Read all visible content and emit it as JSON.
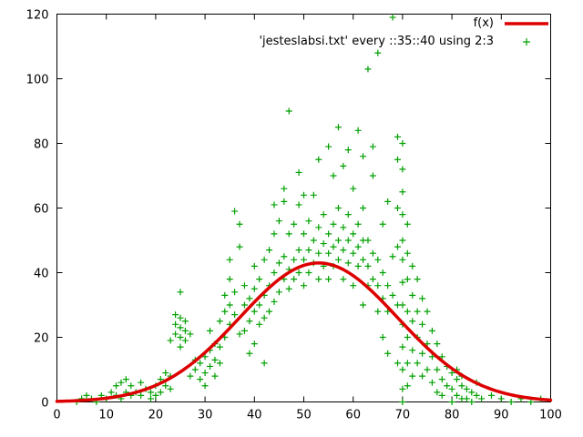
{
  "chart_data": {
    "type": "scatter",
    "title": "",
    "xlabel": "",
    "ylabel": "",
    "x_range": [
      0,
      100
    ],
    "y_range": [
      0,
      120
    ],
    "x_ticks": [
      0,
      10,
      20,
      30,
      40,
      50,
      60,
      70,
      80,
      90,
      100
    ],
    "y_ticks": [
      0,
      20,
      40,
      60,
      80,
      100,
      120
    ],
    "grid": false,
    "legend_position": "top-right-inside",
    "legend": [
      {
        "label": "f(x)",
        "type": "line",
        "color": "#dd0000"
      },
      {
        "label": "'jesteslabsi.txt' every ::35::40 using 2:3",
        "type": "points",
        "color": "#00a000"
      }
    ],
    "curve": {
      "name": "f(x)",
      "shape": "gaussian",
      "amplitude": 43,
      "mean": 53,
      "sigma": 16,
      "color": "#dd0000",
      "line_width": 3.5
    },
    "points_color": "#00a000",
    "points_marker": "plus",
    "points": [
      [
        4,
        0
      ],
      [
        5,
        1
      ],
      [
        6,
        2
      ],
      [
        7,
        1
      ],
      [
        8,
        0
      ],
      [
        9,
        2
      ],
      [
        10,
        1
      ],
      [
        11,
        3
      ],
      [
        12,
        2
      ],
      [
        12,
        5
      ],
      [
        13,
        6
      ],
      [
        13,
        1
      ],
      [
        14,
        7
      ],
      [
        14,
        3
      ],
      [
        15,
        2
      ],
      [
        15,
        5
      ],
      [
        16,
        3
      ],
      [
        17,
        2
      ],
      [
        17,
        6
      ],
      [
        18,
        4
      ],
      [
        19,
        3
      ],
      [
        19,
        1
      ],
      [
        20,
        5
      ],
      [
        20,
        2
      ],
      [
        21,
        7
      ],
      [
        21,
        3
      ],
      [
        22,
        5
      ],
      [
        22,
        9
      ],
      [
        23,
        4
      ],
      [
        23,
        8
      ],
      [
        23,
        19
      ],
      [
        24,
        21
      ],
      [
        24,
        24
      ],
      [
        24,
        27
      ],
      [
        25,
        20
      ],
      [
        25,
        23
      ],
      [
        25,
        26
      ],
      [
        25,
        17
      ],
      [
        25,
        34
      ],
      [
        26,
        22
      ],
      [
        26,
        25
      ],
      [
        26,
        19
      ],
      [
        27,
        21
      ],
      [
        27,
        8
      ],
      [
        28,
        10
      ],
      [
        28,
        13
      ],
      [
        29,
        7
      ],
      [
        29,
        12
      ],
      [
        30,
        9
      ],
      [
        30,
        14
      ],
      [
        30,
        5
      ],
      [
        31,
        11
      ],
      [
        31,
        16
      ],
      [
        31,
        22
      ],
      [
        32,
        8
      ],
      [
        32,
        13
      ],
      [
        32,
        18
      ],
      [
        33,
        12
      ],
      [
        33,
        17
      ],
      [
        33,
        25
      ],
      [
        34,
        20
      ],
      [
        34,
        28
      ],
      [
        34,
        33
      ],
      [
        35,
        24
      ],
      [
        35,
        30
      ],
      [
        35,
        38
      ],
      [
        35,
        44
      ],
      [
        36,
        27
      ],
      [
        36,
        34
      ],
      [
        36,
        59
      ],
      [
        37,
        48
      ],
      [
        37,
        55
      ],
      [
        37,
        21
      ],
      [
        38,
        22
      ],
      [
        38,
        30
      ],
      [
        38,
        36
      ],
      [
        39,
        25
      ],
      [
        39,
        32
      ],
      [
        39,
        15
      ],
      [
        40,
        28
      ],
      [
        40,
        35
      ],
      [
        40,
        42
      ],
      [
        40,
        18
      ],
      [
        41,
        30
      ],
      [
        41,
        38
      ],
      [
        41,
        24
      ],
      [
        42,
        33
      ],
      [
        42,
        44
      ],
      [
        42,
        26
      ],
      [
        42,
        12
      ],
      [
        43,
        36
      ],
      [
        43,
        47
      ],
      [
        43,
        28
      ],
      [
        44,
        40
      ],
      [
        44,
        52
      ],
      [
        44,
        31
      ],
      [
        44,
        61
      ],
      [
        45,
        43
      ],
      [
        45,
        56
      ],
      [
        45,
        34
      ],
      [
        46,
        62
      ],
      [
        46,
        38
      ],
      [
        46,
        45
      ],
      [
        46,
        66
      ],
      [
        47,
        41
      ],
      [
        47,
        35
      ],
      [
        47,
        52
      ],
      [
        47,
        90
      ],
      [
        48,
        44
      ],
      [
        48,
        38
      ],
      [
        48,
        55
      ],
      [
        49,
        47
      ],
      [
        49,
        40
      ],
      [
        49,
        61
      ],
      [
        49,
        71
      ],
      [
        50,
        44
      ],
      [
        50,
        52
      ],
      [
        50,
        36
      ],
      [
        50,
        64
      ],
      [
        51,
        47
      ],
      [
        51,
        56
      ],
      [
        51,
        40
      ],
      [
        52,
        50
      ],
      [
        52,
        43
      ],
      [
        52,
        64
      ],
      [
        53,
        46
      ],
      [
        53,
        54
      ],
      [
        53,
        38
      ],
      [
        53,
        75
      ],
      [
        54,
        49
      ],
      [
        54,
        58
      ],
      [
        54,
        42
      ],
      [
        55,
        46
      ],
      [
        55,
        52
      ],
      [
        55,
        38
      ],
      [
        55,
        79
      ],
      [
        56,
        48
      ],
      [
        56,
        55
      ],
      [
        56,
        42
      ],
      [
        56,
        70
      ],
      [
        57,
        50
      ],
      [
        57,
        44
      ],
      [
        57,
        60
      ],
      [
        57,
        85
      ],
      [
        58,
        47
      ],
      [
        58,
        54
      ],
      [
        58,
        38
      ],
      [
        58,
        73
      ],
      [
        59,
        50
      ],
      [
        59,
        43
      ],
      [
        59,
        58
      ],
      [
        59,
        78
      ],
      [
        60,
        46
      ],
      [
        60,
        52
      ],
      [
        60,
        36
      ],
      [
        60,
        66
      ],
      [
        61,
        48
      ],
      [
        61,
        42
      ],
      [
        61,
        55
      ],
      [
        61,
        84
      ],
      [
        62,
        44
      ],
      [
        62,
        50
      ],
      [
        62,
        30
      ],
      [
        62,
        60
      ],
      [
        62,
        76
      ],
      [
        63,
        42
      ],
      [
        63,
        36
      ],
      [
        63,
        50
      ],
      [
        63,
        103
      ],
      [
        64,
        46
      ],
      [
        64,
        38
      ],
      [
        64,
        70
      ],
      [
        64,
        79
      ],
      [
        65,
        44
      ],
      [
        65,
        36
      ],
      [
        65,
        28
      ],
      [
        65,
        108
      ],
      [
        66,
        40
      ],
      [
        66,
        32
      ],
      [
        66,
        55
      ],
      [
        66,
        20
      ],
      [
        67,
        36
      ],
      [
        67,
        28
      ],
      [
        67,
        62
      ],
      [
        67,
        15
      ],
      [
        68,
        119
      ],
      [
        68,
        45
      ],
      [
        68,
        33
      ],
      [
        69,
        82
      ],
      [
        69,
        75
      ],
      [
        69,
        60
      ],
      [
        69,
        48
      ],
      [
        69,
        30
      ],
      [
        69,
        12
      ],
      [
        70,
        80
      ],
      [
        70,
        72
      ],
      [
        70,
        65
      ],
      [
        70,
        58
      ],
      [
        70,
        50
      ],
      [
        70,
        44
      ],
      [
        70,
        37
      ],
      [
        70,
        30
      ],
      [
        70,
        24
      ],
      [
        70,
        17
      ],
      [
        70,
        10
      ],
      [
        70,
        4
      ],
      [
        70,
        0
      ],
      [
        71,
        55
      ],
      [
        71,
        46
      ],
      [
        71,
        38
      ],
      [
        71,
        28
      ],
      [
        71,
        20
      ],
      [
        71,
        12
      ],
      [
        71,
        5
      ],
      [
        72,
        42
      ],
      [
        72,
        33
      ],
      [
        72,
        25
      ],
      [
        72,
        16
      ],
      [
        72,
        8
      ],
      [
        73,
        38
      ],
      [
        73,
        28
      ],
      [
        73,
        20
      ],
      [
        73,
        12
      ],
      [
        74,
        32
      ],
      [
        74,
        24
      ],
      [
        74,
        15
      ],
      [
        74,
        8
      ],
      [
        75,
        28
      ],
      [
        75,
        18
      ],
      [
        75,
        10
      ],
      [
        76,
        22
      ],
      [
        76,
        14
      ],
      [
        76,
        6
      ],
      [
        77,
        18
      ],
      [
        77,
        10
      ],
      [
        77,
        3
      ],
      [
        78,
        14
      ],
      [
        78,
        7
      ],
      [
        78,
        2
      ],
      [
        79,
        11
      ],
      [
        79,
        5
      ],
      [
        80,
        9
      ],
      [
        80,
        4
      ],
      [
        80,
        0
      ],
      [
        81,
        7
      ],
      [
        81,
        2
      ],
      [
        81,
        10
      ],
      [
        82,
        5
      ],
      [
        82,
        1
      ],
      [
        82,
        8
      ],
      [
        83,
        4
      ],
      [
        83,
        1
      ],
      [
        84,
        3
      ],
      [
        84,
        0
      ],
      [
        85,
        2
      ],
      [
        85,
        6
      ],
      [
        86,
        1
      ],
      [
        88,
        2
      ],
      [
        90,
        1
      ],
      [
        92,
        0
      ],
      [
        94,
        1
      ],
      [
        96,
        0
      ],
      [
        98,
        1
      ]
    ]
  }
}
